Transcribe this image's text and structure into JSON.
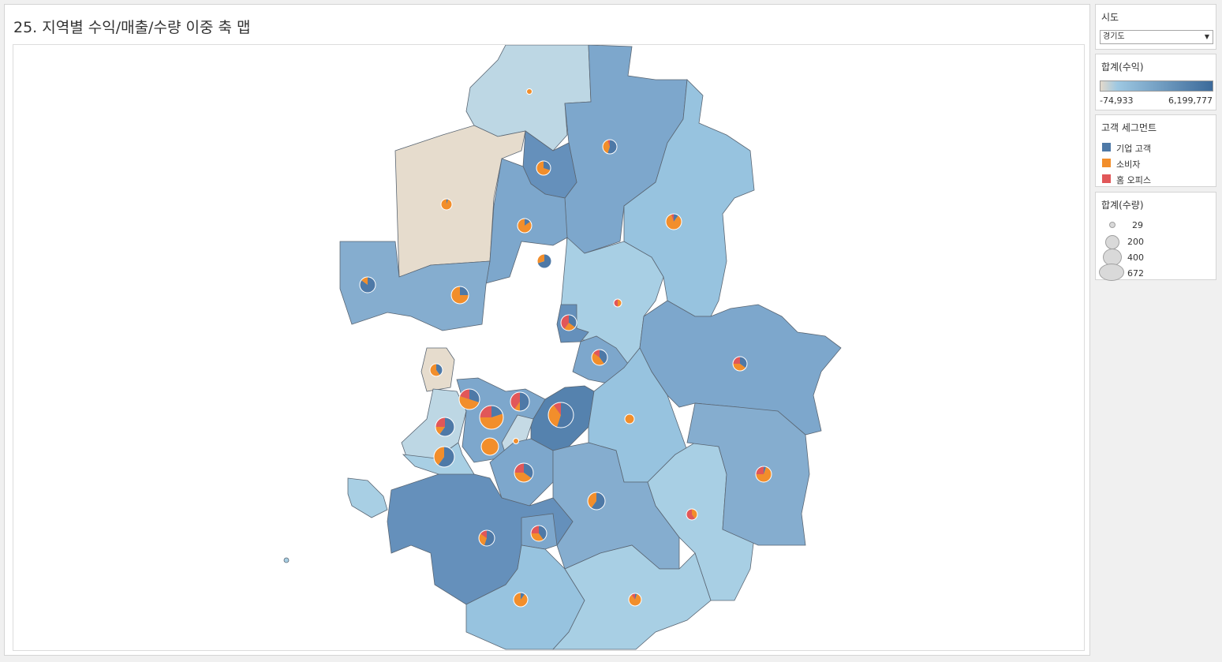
{
  "title": "25. 지역별 수익/매출/수량 이중 축 맵",
  "filter": {
    "title": "시도",
    "value": "경기도"
  },
  "profit_legend": {
    "title": "합계(수익)",
    "min_label": "-74,933",
    "max_label": "6,199,777",
    "color_low": "#e3d9cb",
    "color_mid": "#9ec8e2",
    "color_high": "#3c6a9a"
  },
  "segment_legend": {
    "title": "고객 세그먼트",
    "items": [
      {
        "label": "기업 고객",
        "color": "#4e79a7"
      },
      {
        "label": "소비자",
        "color": "#f28e2b"
      },
      {
        "label": "홈 오피스",
        "color": "#e15759"
      }
    ]
  },
  "quantity_legend": {
    "title": "합계(수량)",
    "items": [
      {
        "label": "29"
      },
      {
        "label": "200"
      },
      {
        "label": "400"
      },
      {
        "label": "672"
      }
    ]
  }
}
